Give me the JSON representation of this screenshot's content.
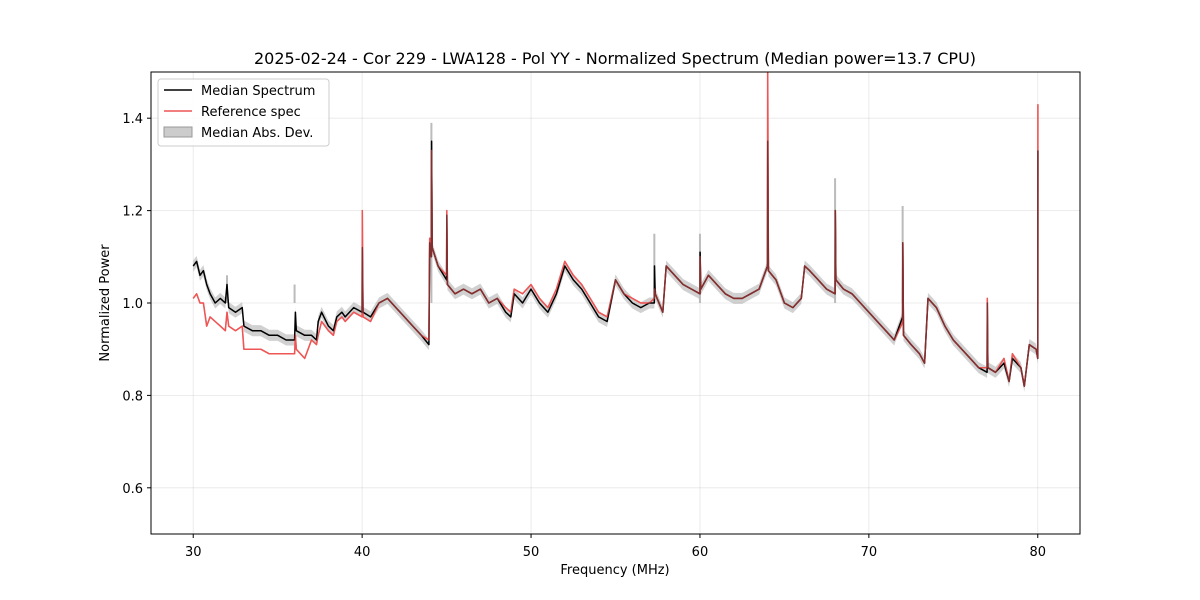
{
  "chart_data": {
    "type": "line",
    "title": "2025-02-24 - Cor 229 - LWA128 - Pol YY - Normalized Spectrum (Median power=13.7 CPU)",
    "xlabel": "Frequency (MHz)",
    "ylabel": "Normalized Power",
    "xlim": [
      27.5,
      82.5
    ],
    "ylim": [
      0.5,
      1.5
    ],
    "xticks": [
      30,
      40,
      50,
      60,
      70,
      80
    ],
    "yticks": [
      0.6,
      0.8,
      1.0,
      1.2,
      1.4
    ],
    "xtick_labels": [
      "30",
      "40",
      "50",
      "60",
      "70",
      "80"
    ],
    "ytick_labels": [
      "0.6",
      "0.8",
      "1.0",
      "1.2",
      "1.4"
    ],
    "grid": true,
    "legend": {
      "position": "top-left",
      "entries": [
        {
          "label": "Median Spectrum",
          "color": "#000000",
          "kind": "line"
        },
        {
          "label": "Reference spec",
          "color": "#ee5555",
          "kind": "line"
        },
        {
          "label": "Median Abs. Dev.",
          "color": "#bbbbbb",
          "kind": "patch"
        }
      ]
    },
    "series": [
      {
        "name": "Median Spectrum",
        "color": "#000000",
        "x": [
          30.0,
          30.2,
          30.4,
          30.6,
          30.8,
          31.0,
          31.3,
          31.6,
          31.9,
          32.0,
          32.1,
          32.5,
          32.9,
          33.0,
          33.5,
          34.0,
          34.5,
          35.0,
          35.5,
          36.0,
          36.05,
          36.1,
          36.6,
          37.0,
          37.3,
          37.4,
          37.6,
          38.0,
          38.3,
          38.5,
          38.8,
          39.0,
          39.5,
          40.0,
          40.01,
          40.05,
          40.5,
          41.0,
          41.5,
          42.0,
          42.5,
          43.0,
          43.5,
          43.95,
          44.0,
          44.1,
          44.11,
          44.15,
          44.5,
          45.0,
          45.01,
          45.05,
          45.5,
          46.0,
          46.5,
          47.0,
          47.5,
          48.0,
          48.5,
          48.8,
          49.0,
          49.5,
          50.0,
          50.5,
          51.0,
          51.5,
          52.0,
          52.5,
          53.0,
          53.5,
          54.0,
          54.5,
          55.0,
          55.5,
          56.0,
          56.5,
          57.0,
          57.3,
          57.31,
          57.35,
          57.8,
          58.0,
          58.5,
          59.0,
          59.5,
          60.0,
          60.01,
          60.05,
          60.5,
          61.0,
          61.5,
          62.0,
          62.5,
          63.0,
          63.5,
          64.0,
          64.01,
          64.05,
          64.5,
          65.0,
          65.5,
          66.0,
          66.2,
          66.5,
          67.0,
          67.5,
          68.0,
          68.01,
          68.05,
          68.5,
          69.0,
          69.5,
          70.0,
          70.5,
          71.0,
          71.5,
          71.9,
          72.0,
          72.01,
          72.05,
          72.5,
          73.0,
          73.3,
          73.5,
          74.0,
          74.5,
          75.0,
          75.5,
          76.0,
          76.5,
          77.0,
          77.01,
          77.05,
          77.5,
          78.0,
          78.3,
          78.5,
          79.0,
          79.2,
          79.5,
          79.9,
          80.0,
          80.01
        ],
        "values": [
          1.08,
          1.09,
          1.06,
          1.07,
          1.04,
          1.02,
          1.0,
          1.01,
          1.0,
          1.04,
          0.99,
          0.98,
          0.99,
          0.95,
          0.94,
          0.94,
          0.93,
          0.93,
          0.92,
          0.92,
          0.98,
          0.94,
          0.93,
          0.93,
          0.92,
          0.96,
          0.98,
          0.95,
          0.94,
          0.97,
          0.98,
          0.97,
          0.99,
          0.98,
          1.12,
          0.98,
          0.97,
          1.0,
          1.01,
          0.99,
          0.97,
          0.95,
          0.93,
          0.91,
          1.13,
          1.1,
          1.35,
          1.12,
          1.08,
          1.05,
          1.19,
          1.04,
          1.02,
          1.03,
          1.02,
          1.03,
          1.0,
          1.01,
          0.98,
          0.97,
          1.02,
          1.0,
          1.03,
          1.0,
          0.98,
          1.02,
          1.08,
          1.05,
          1.03,
          1.0,
          0.97,
          0.96,
          1.05,
          1.02,
          1.0,
          0.99,
          1.0,
          1.0,
          1.08,
          1.02,
          0.98,
          1.08,
          1.06,
          1.04,
          1.03,
          1.02,
          1.11,
          1.03,
          1.06,
          1.04,
          1.02,
          1.01,
          1.01,
          1.02,
          1.03,
          1.08,
          1.35,
          1.07,
          1.05,
          1.0,
          0.99,
          1.01,
          1.08,
          1.07,
          1.05,
          1.03,
          1.02,
          1.2,
          1.05,
          1.03,
          1.02,
          1.0,
          0.98,
          0.96,
          0.94,
          0.92,
          0.96,
          0.97,
          1.13,
          0.93,
          0.91,
          0.89,
          0.87,
          1.01,
          0.99,
          0.95,
          0.92,
          0.9,
          0.88,
          0.86,
          0.85,
          1.0,
          0.86,
          0.85,
          0.87,
          0.83,
          0.88,
          0.86,
          0.82,
          0.91,
          0.9,
          0.88,
          1.33
        ]
      },
      {
        "name": "Reference spec",
        "color": "#ee5555",
        "x": [
          30.0,
          30.2,
          30.4,
          30.6,
          30.8,
          31.0,
          31.3,
          31.6,
          31.9,
          32.0,
          32.1,
          32.5,
          32.9,
          33.0,
          33.5,
          34.0,
          34.5,
          35.0,
          35.5,
          36.0,
          36.05,
          36.1,
          36.6,
          37.0,
          37.3,
          37.4,
          37.6,
          38.0,
          38.3,
          38.5,
          38.8,
          39.0,
          39.5,
          40.0,
          40.01,
          40.05,
          40.5,
          41.0,
          41.5,
          42.0,
          42.5,
          43.0,
          43.5,
          43.95,
          44.0,
          44.1,
          44.11,
          44.15,
          44.5,
          45.0,
          45.01,
          45.05,
          45.5,
          46.0,
          46.5,
          47.0,
          47.5,
          48.0,
          48.5,
          48.8,
          49.0,
          49.5,
          50.0,
          50.5,
          51.0,
          51.5,
          52.0,
          52.5,
          53.0,
          53.5,
          54.0,
          54.5,
          55.0,
          55.5,
          56.0,
          56.5,
          57.0,
          57.3,
          57.31,
          57.35,
          57.8,
          58.0,
          58.5,
          59.0,
          59.5,
          60.0,
          60.01,
          60.05,
          60.5,
          61.0,
          61.5,
          62.0,
          62.5,
          63.0,
          63.5,
          64.0,
          64.01,
          64.05,
          64.5,
          65.0,
          65.5,
          66.0,
          66.2,
          66.5,
          67.0,
          67.5,
          68.0,
          68.01,
          68.05,
          68.5,
          69.0,
          69.5,
          70.0,
          70.5,
          71.0,
          71.5,
          71.9,
          72.0,
          72.01,
          72.05,
          72.5,
          73.0,
          73.3,
          73.5,
          74.0,
          74.5,
          75.0,
          75.5,
          76.0,
          76.5,
          77.0,
          77.01,
          77.05,
          77.5,
          78.0,
          78.3,
          78.5,
          79.0,
          79.2,
          79.5,
          79.9,
          80.0,
          80.01
        ],
        "values": [
          1.01,
          1.02,
          1.0,
          1.0,
          0.95,
          0.97,
          0.96,
          0.95,
          0.94,
          0.98,
          0.95,
          0.94,
          0.95,
          0.9,
          0.9,
          0.9,
          0.89,
          0.89,
          0.89,
          0.89,
          0.93,
          0.9,
          0.88,
          0.92,
          0.91,
          0.93,
          0.96,
          0.94,
          0.93,
          0.96,
          0.97,
          0.96,
          0.98,
          0.97,
          1.2,
          0.97,
          0.96,
          1.0,
          1.01,
          0.99,
          0.97,
          0.95,
          0.93,
          0.92,
          1.14,
          1.1,
          1.33,
          1.12,
          1.08,
          1.06,
          1.2,
          1.04,
          1.02,
          1.03,
          1.02,
          1.03,
          1.0,
          1.01,
          0.99,
          0.98,
          1.03,
          1.02,
          1.04,
          1.01,
          0.99,
          1.03,
          1.09,
          1.06,
          1.04,
          1.01,
          0.98,
          0.97,
          1.05,
          1.02,
          1.01,
          1.0,
          1.0,
          1.01,
          1.03,
          1.02,
          0.98,
          1.08,
          1.06,
          1.04,
          1.03,
          1.02,
          1.1,
          1.03,
          1.06,
          1.04,
          1.02,
          1.01,
          1.01,
          1.02,
          1.03,
          1.08,
          1.52,
          1.07,
          1.05,
          1.0,
          0.99,
          1.01,
          1.08,
          1.07,
          1.05,
          1.03,
          1.02,
          1.2,
          1.05,
          1.03,
          1.02,
          1.0,
          0.98,
          0.96,
          0.94,
          0.92,
          0.95,
          0.96,
          1.13,
          0.93,
          0.91,
          0.89,
          0.87,
          1.01,
          0.99,
          0.95,
          0.92,
          0.9,
          0.88,
          0.86,
          0.86,
          1.01,
          0.86,
          0.85,
          0.88,
          0.83,
          0.89,
          0.86,
          0.82,
          0.91,
          0.9,
          0.88,
          1.43
        ]
      }
    ],
    "mad_band_halfwidth": 0.012,
    "mad_spikes": [
      {
        "x": 32.0,
        "value": 1.06
      },
      {
        "x": 36.0,
        "value": 1.04
      },
      {
        "x": 44.1,
        "value": 1.39
      },
      {
        "x": 57.3,
        "value": 1.15
      },
      {
        "x": 60.0,
        "value": 1.15
      },
      {
        "x": 68.0,
        "value": 1.27
      },
      {
        "x": 72.0,
        "value": 1.21
      }
    ]
  }
}
